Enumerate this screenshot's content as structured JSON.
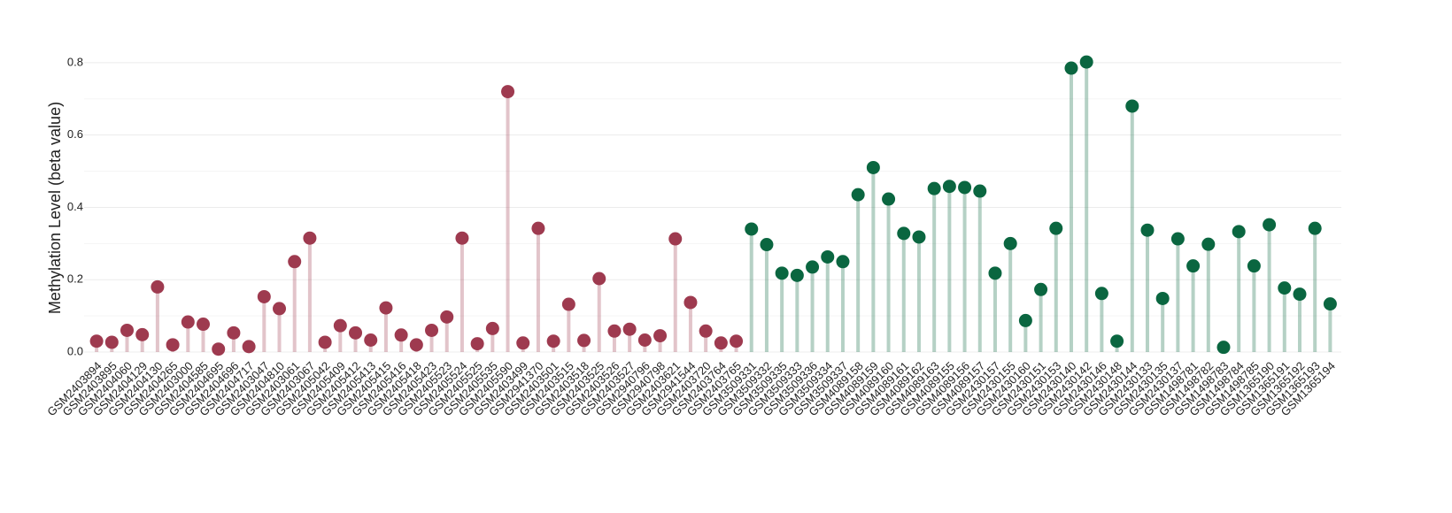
{
  "chart_data": {
    "type": "lollipop",
    "y_label": "Methylation Level (beta value)",
    "categories": [
      "GSM2403894",
      "GSM2403895",
      "GSM2404060",
      "GSM2404129",
      "GSM2404130",
      "GSM2404265",
      "GSM2403000",
      "GSM2404585",
      "GSM2404695",
      "GSM2404696",
      "GSM2404717",
      "GSM2403047",
      "GSM2404810",
      "GSM2403061",
      "GSM2403067",
      "GSM2405042",
      "GSM2405409",
      "GSM2405412",
      "GSM2405413",
      "GSM2405415",
      "GSM2405416",
      "GSM2405418",
      "GSM2405423",
      "GSM2405523",
      "GSM2405524",
      "GSM2405525",
      "GSM2405535",
      "GSM2405590",
      "GSM2403499",
      "GSM2941370",
      "GSM2403501",
      "GSM2403515",
      "GSM2403518",
      "GSM2403525",
      "GSM2403526",
      "GSM2403527",
      "GSM2940796",
      "GSM2940798",
      "GSM2403621",
      "GSM2941544",
      "GSM2403720",
      "GSM2403764",
      "GSM2403765",
      "GSM3509331",
      "GSM3509332",
      "GSM3509335",
      "GSM3509333",
      "GSM3509336",
      "GSM3509334",
      "GSM3509337",
      "GSM4089158",
      "GSM4089159",
      "GSM4089160",
      "GSM4089161",
      "GSM4089162",
      "GSM4089163",
      "GSM4089155",
      "GSM4089156",
      "GSM4089157",
      "GSM2430157",
      "GSM2430155",
      "GSM2430160",
      "GSM2430151",
      "GSM2430153",
      "GSM2430140",
      "GSM2430142",
      "GSM2430146",
      "GSM2430148",
      "GSM2430144",
      "GSM2430133",
      "GSM2430135",
      "GSM2430137",
      "GSM1498781",
      "GSM1498782",
      "GSM1498783",
      "GSM1498784",
      "GSM1498785",
      "GSM1365190",
      "GSM1365191",
      "GSM1365192",
      "GSM1365193",
      "GSM1365194"
    ],
    "values": [
      0.03,
      0.027,
      0.06,
      0.048,
      0.18,
      0.02,
      0.083,
      0.077,
      0.008,
      0.053,
      0.015,
      0.153,
      0.12,
      0.25,
      0.315,
      0.027,
      0.073,
      0.053,
      0.033,
      0.122,
      0.047,
      0.02,
      0.06,
      0.097,
      0.315,
      0.023,
      0.065,
      0.72,
      0.025,
      0.342,
      0.03,
      0.132,
      0.032,
      0.203,
      0.058,
      0.063,
      0.033,
      0.045,
      0.313,
      0.137,
      0.058,
      0.025,
      0.03,
      0.34,
      0.297,
      0.218,
      0.212,
      0.235,
      0.263,
      0.25,
      0.435,
      0.51,
      0.423,
      0.328,
      0.318,
      0.452,
      0.458,
      0.455,
      0.445,
      0.218,
      0.3,
      0.087,
      0.173,
      0.342,
      0.785,
      0.802,
      0.162,
      0.03,
      0.68,
      0.337,
      0.148,
      0.313,
      0.238,
      0.298,
      0.013,
      0.333,
      0.238,
      0.352,
      0.177,
      0.16,
      0.342,
      0.133
    ],
    "colors": [
      "#9e3a4f",
      "#9e3a4f",
      "#9e3a4f",
      "#9e3a4f",
      "#9e3a4f",
      "#9e3a4f",
      "#9e3a4f",
      "#9e3a4f",
      "#9e3a4f",
      "#9e3a4f",
      "#9e3a4f",
      "#9e3a4f",
      "#9e3a4f",
      "#9e3a4f",
      "#9e3a4f",
      "#9e3a4f",
      "#9e3a4f",
      "#9e3a4f",
      "#9e3a4f",
      "#9e3a4f",
      "#9e3a4f",
      "#9e3a4f",
      "#9e3a4f",
      "#9e3a4f",
      "#9e3a4f",
      "#9e3a4f",
      "#9e3a4f",
      "#9e3a4f",
      "#9e3a4f",
      "#9e3a4f",
      "#9e3a4f",
      "#9e3a4f",
      "#9e3a4f",
      "#9e3a4f",
      "#9e3a4f",
      "#9e3a4f",
      "#9e3a4f",
      "#9e3a4f",
      "#9e3a4f",
      "#9e3a4f",
      "#9e3a4f",
      "#9e3a4f",
      "#9e3a4f",
      "#0a6640",
      "#0a6640",
      "#0a6640",
      "#0a6640",
      "#0a6640",
      "#0a6640",
      "#0a6640",
      "#0a6640",
      "#0a6640",
      "#0a6640",
      "#0a6640",
      "#0a6640",
      "#0a6640",
      "#0a6640",
      "#0a6640",
      "#0a6640",
      "#0a6640",
      "#0a6640",
      "#0a6640",
      "#0a6640",
      "#0a6640",
      "#0a6640",
      "#0a6640",
      "#0a6640",
      "#0a6640",
      "#0a6640",
      "#0a6640",
      "#0a6640",
      "#0a6640",
      "#0a6640",
      "#0a6640",
      "#0a6640",
      "#0a6640",
      "#0a6640",
      "#0a6640",
      "#0a6640",
      "#0a6640",
      "#0a6640",
      "#0a6640"
    ],
    "ylim": [
      0,
      0.9
    ],
    "yticks": [
      {
        "value": 0,
        "label": "0.0"
      },
      0.2,
      0.4,
      0.6,
      0.8
    ],
    "yminorticks": [
      0.1,
      0.3,
      0.5,
      0.7
    ],
    "grid": true
  }
}
